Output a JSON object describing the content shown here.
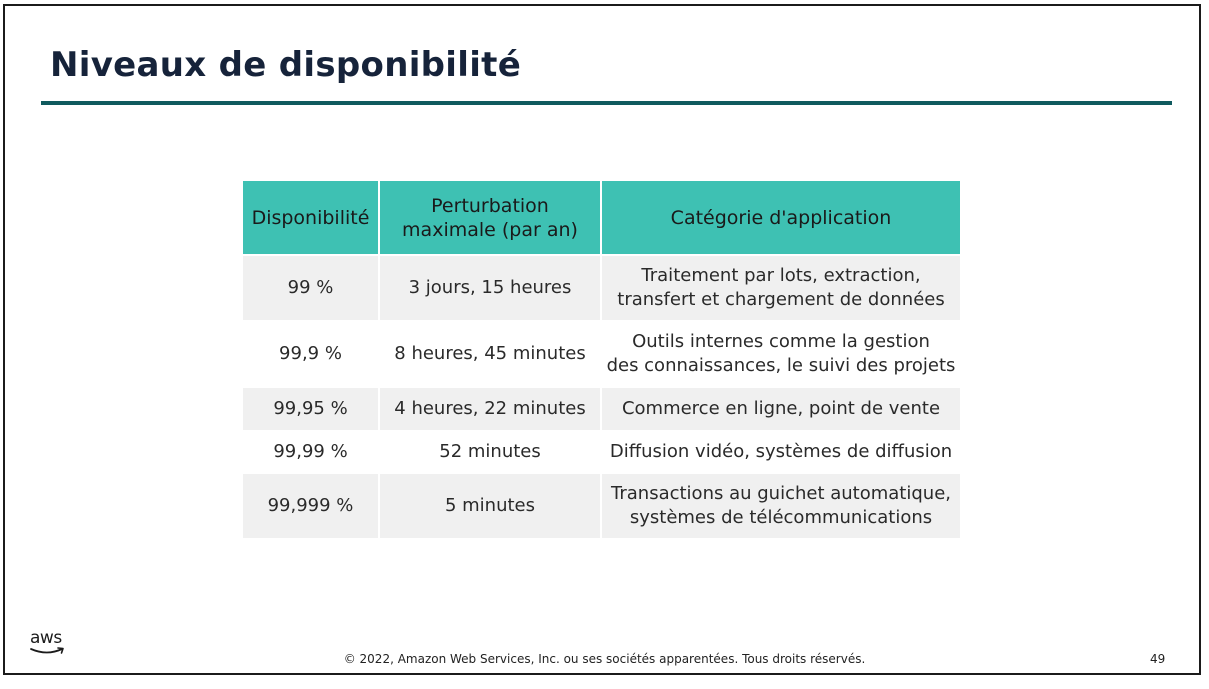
{
  "slide": {
    "title": "Niveaux de disponibilité",
    "table": {
      "headers": [
        "Disponibilité",
        "Perturbation\nmaximale (par an)",
        "Catégorie d'application"
      ],
      "rows": [
        [
          "99 %",
          "3 jours, 15 heures",
          "Traitement par lots, extraction,\ntransfert et chargement de données"
        ],
        [
          "99,9 %",
          "8 heures, 45 minutes",
          "Outils internes comme la gestion\ndes connaissances, le suivi des projets"
        ],
        [
          "99,95 %",
          "4 heures, 22 minutes",
          "Commerce en ligne, point de vente"
        ],
        [
          "99,99 %",
          "52 minutes",
          "Diffusion vidéo, systèmes de diffusion"
        ],
        [
          "99,999 %",
          "5 minutes",
          "Transactions au guichet automatique,\nsystèmes de télécommunications"
        ]
      ]
    },
    "logo_text": "aws",
    "footer": "© 2022, Amazon Web Services, Inc. ou ses sociétés apparentées. Tous droits réservés.",
    "page_number": "49"
  },
  "colors": {
    "title": "#16233a",
    "rule": "#0f5a5e",
    "header_bg": "#3ec1b3",
    "row_shaded": "#f0f0f0"
  }
}
